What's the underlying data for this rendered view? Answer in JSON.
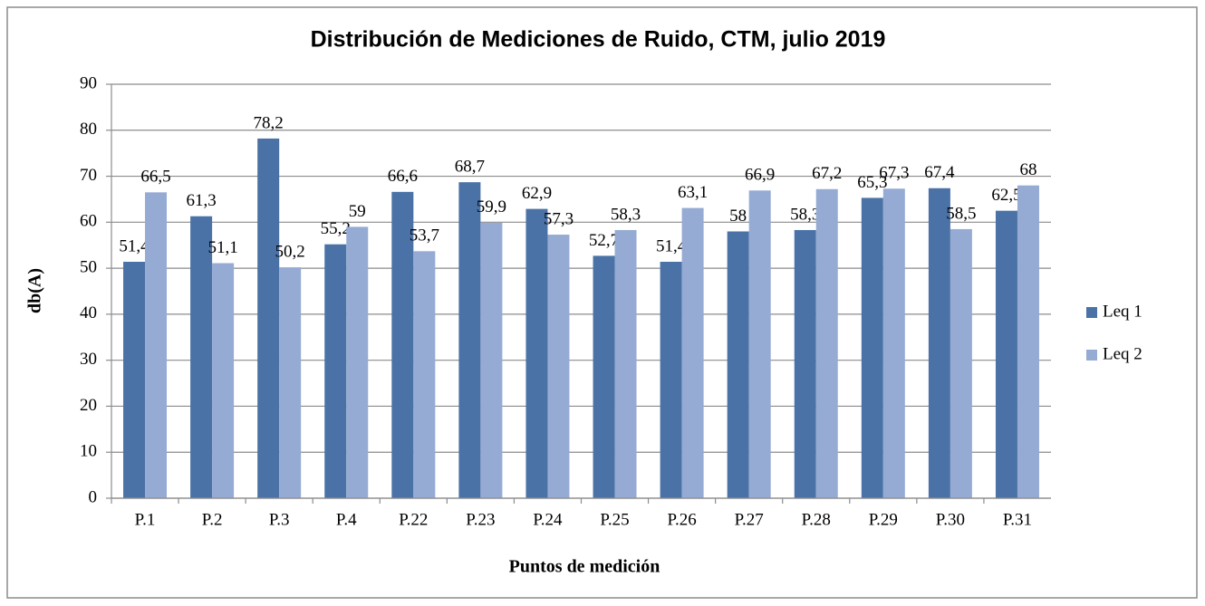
{
  "chart_data": {
    "type": "bar",
    "title": "Distribución de Mediciones de Ruido, CTM, julio 2019",
    "x_label": "Puntos de medición",
    "y_label": "db(A)",
    "categories": [
      "P.1",
      "P.2",
      "P.3",
      "P.4",
      "P.22",
      "P.23",
      "P.24",
      "P.25",
      "P.26",
      "P.27",
      "P.28",
      "P.29",
      "P.30",
      "P.31"
    ],
    "series": [
      {
        "name": "Leq 1",
        "color": "#4a72a6",
        "values": [
          51.4,
          61.3,
          78.2,
          55.2,
          66.6,
          68.7,
          62.9,
          52.7,
          51.4,
          58,
          58.3,
          65.3,
          67.4,
          62.5
        ],
        "value_labels": [
          "51,4",
          "61,3",
          "78,2",
          "55,2",
          "66,6",
          "68,7",
          "62,9",
          "52,7",
          "51,4",
          "58",
          "58,3",
          "65,3",
          "67,4",
          "62,5"
        ]
      },
      {
        "name": "Leq 2",
        "color": "#95abd3",
        "values": [
          66.5,
          51.1,
          50.2,
          59,
          53.7,
          59.9,
          57.3,
          58.3,
          63.1,
          66.9,
          67.2,
          67.3,
          58.5,
          68
        ],
        "value_labels": [
          "66,5",
          "51,1",
          "50,2",
          "59",
          "53,7",
          "59,9",
          "57,3",
          "58,3",
          "63,1",
          "66,9",
          "67,2",
          "67,3",
          "58,5",
          "68"
        ]
      }
    ],
    "ylim": [
      0,
      90
    ],
    "yticks": [
      0,
      10,
      20,
      30,
      40,
      50,
      60,
      70,
      80,
      90
    ],
    "grid": true,
    "legend": "right"
  }
}
